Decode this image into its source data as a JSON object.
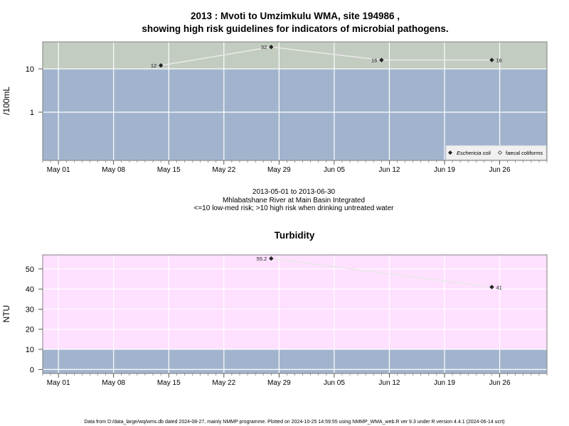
{
  "chart_data": [
    {
      "type": "line",
      "title": "2013 : Mvoti to Umzimkulu WMA, site 194986 ,",
      "subtitle": "showing high risk guidelines for indicators of microbial pathogens.",
      "ylabel": "/100mL",
      "yscale": "log",
      "yticks": [
        1,
        10
      ],
      "ytick_labels": [
        "1",
        "10"
      ],
      "xticks": [
        "May 01",
        "May 08",
        "May 15",
        "May 22",
        "May 29",
        "Jun 05",
        "Jun 12",
        "Jun 19",
        "Jun 26"
      ],
      "xlim": [
        "2013-04-29",
        "2013-07-02"
      ],
      "risk_bands": [
        {
          "label": "low-med risk",
          "max": 10,
          "color": "#a2b4cd"
        },
        {
          "label": "high risk",
          "min": 10,
          "color": "#c2ccc0"
        }
      ],
      "series": [
        {
          "name": "Eschericia coli",
          "marker": "diamond-filled",
          "x": [
            "2013-05-14",
            "2013-05-28",
            "2013-06-11",
            "2013-06-25"
          ],
          "y": [
            12,
            32,
            16,
            16
          ]
        },
        {
          "name": "faecal coliforms",
          "marker": "diamond-open",
          "x": [],
          "y": []
        }
      ],
      "legend_position": "bottom-right",
      "caption": [
        "2013-05-01 to 2013-06-30",
        "Mhlabatshane River at Main Basin Integrated",
        "<=10 low-med risk; >10 high risk when drinking untreated water"
      ],
      "grid": true
    },
    {
      "type": "line",
      "title": "Turbidity",
      "ylabel": "NTU",
      "ylim": [
        -2,
        57
      ],
      "yticks": [
        0,
        10,
        20,
        30,
        40,
        50
      ],
      "xticks": [
        "May 01",
        "May 08",
        "May 15",
        "May 22",
        "May 29",
        "Jun 05",
        "Jun 12",
        "Jun 19",
        "Jun 26"
      ],
      "xlim": [
        "2013-04-29",
        "2013-07-02"
      ],
      "risk_bands": [
        {
          "max": 10,
          "color": "#a2b4cd"
        },
        {
          "min": 10,
          "color": "#ffe0ff"
        }
      ],
      "series": [
        {
          "x": [
            "2013-05-28",
            "2013-06-25"
          ],
          "y": [
            55.2,
            41
          ]
        }
      ],
      "data_labels": [
        "55.2",
        "41"
      ],
      "grid": true
    }
  ],
  "footer": "Data from D:/data_large/wq/wms.db dated 2024-08-27, mainly NMMP programme. Plotted on 2024-10-25 14:59:55 using NMMP_WMA_web.R ver 9.3 under R version 4.4.1 (2024-06-14 ucrt)"
}
